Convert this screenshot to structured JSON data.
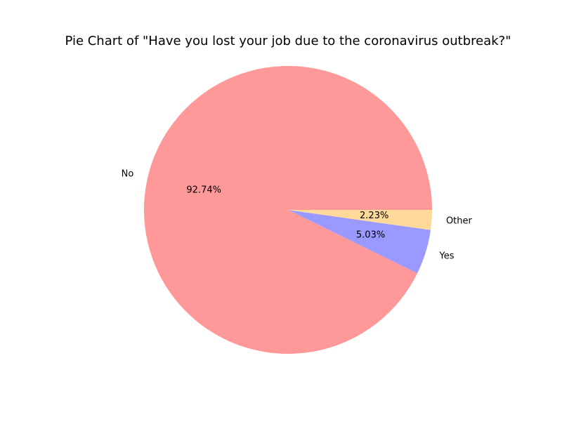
{
  "chart_data": {
    "type": "pie",
    "title": "Pie Chart of \"Have you lost your job due to the coronavirus outbreak?\"",
    "slices": [
      {
        "label": "No",
        "value": 92.74,
        "pct_label": "92.74%",
        "color": "#ff9999"
      },
      {
        "label": "Yes",
        "value": 5.03,
        "pct_label": "5.03%",
        "color": "#9999ff"
      },
      {
        "label": "Other",
        "value": 2.23,
        "pct_label": "2.23%",
        "color": "#ffd999"
      }
    ],
    "start_angle_deg": 0,
    "direction": "counterclockwise"
  }
}
